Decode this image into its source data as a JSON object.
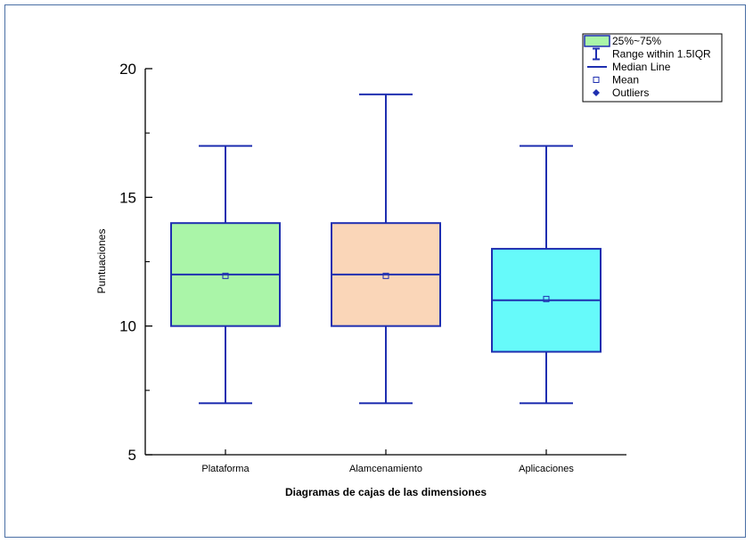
{
  "chart_data": {
    "type": "box",
    "xlabel": "Diagramas de cajas de las dimensiones",
    "ylabel": "Puntuaciones",
    "ylim": [
      5,
      20
    ],
    "yticks": [
      "5",
      "10",
      "15",
      "20"
    ],
    "categories": [
      "Plataforma",
      "Alamcenamiento",
      "Aplicaciones"
    ],
    "boxes": [
      {
        "name": "Plataforma",
        "whisker_low": 7,
        "q1": 10,
        "median": 12,
        "q3": 14,
        "whisker_high": 17,
        "mean": 11.95,
        "color": "#aaf5a8"
      },
      {
        "name": "Alamcenamiento",
        "whisker_low": 7,
        "q1": 10,
        "median": 12,
        "q3": 14,
        "whisker_high": 19,
        "mean": 11.95,
        "color": "#fad6b8"
      },
      {
        "name": "Aplicaciones",
        "whisker_low": 7,
        "q1": 9,
        "median": 11,
        "q3": 13,
        "whisker_high": 17,
        "mean": 11.05,
        "color": "#66fafa"
      }
    ],
    "line_color": "#1f2fb0",
    "legend": {
      "position": "top-right",
      "items": [
        "25%~75%",
        "Range within 1.5IQR",
        "Median Line",
        "Mean",
        "Outliers"
      ]
    },
    "grid": false
  }
}
